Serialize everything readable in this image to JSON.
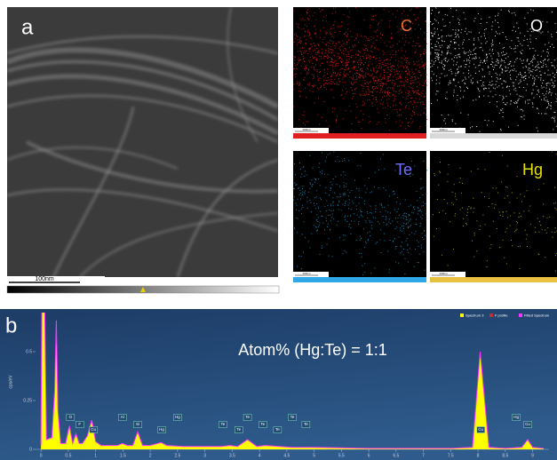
{
  "panel_a": {
    "label": "a",
    "scale_bar": "100nm"
  },
  "maps": [
    {
      "element": "C",
      "color": "#f07030",
      "dot_color": "#c8181a",
      "bar_color": "#e02020"
    },
    {
      "element": "O",
      "color": "#ffffff",
      "dot_color": "#e0e0e0",
      "bar_color": "#d8d8d8"
    },
    {
      "element": "Te",
      "color": "#6f6fff",
      "dot_color": "#1f7fae",
      "bar_color": "#30a8e8"
    },
    {
      "element": "Hg",
      "color": "#e8e000",
      "dot_color": "#9a9a20",
      "bar_color": "#e8c040"
    }
  ],
  "chart_data": {
    "type": "area",
    "panel_label": "b",
    "annotation": "Atom% (Hg:Te) = 1:1",
    "y_label": "cps/eV",
    "x": [
      0,
      0.02,
      0.06,
      0.1,
      0.2,
      0.25,
      0.28,
      0.31,
      0.36,
      0.45,
      0.52,
      0.58,
      0.64,
      0.7,
      0.76,
      0.85,
      0.93,
      1.0,
      1.1,
      1.4,
      1.49,
      1.58,
      1.68,
      1.77,
      1.86,
      2.0,
      2.2,
      2.3,
      2.6,
      3.3,
      3.45,
      3.6,
      3.78,
      3.95,
      4.1,
      4.6,
      5.0,
      6.0,
      7.5,
      7.9,
      8.04,
      8.2,
      8.5,
      8.8,
      8.91,
      9.0,
      9.2
    ],
    "series": [
      {
        "name": "Spectrum 3",
        "color": "#ffff00",
        "outline": "#ff33ff",
        "values": [
          0.02,
          0.9,
          0.9,
          0.05,
          0.06,
          0.3,
          0.66,
          0.2,
          0.03,
          0.03,
          0.12,
          0.03,
          0.08,
          0.03,
          0.03,
          0.07,
          0.15,
          0.04,
          0.02,
          0.02,
          0.03,
          0.02,
          0.02,
          0.09,
          0.02,
          0.02,
          0.035,
          0.02,
          0.015,
          0.015,
          0.02,
          0.015,
          0.05,
          0.015,
          0.02,
          0.01,
          0.01,
          0.005,
          0.005,
          0.01,
          0.5,
          0.01,
          0.005,
          0.01,
          0.05,
          0.01,
          0.005
        ]
      }
    ],
    "legend": [
      {
        "name": "Spectrum 3",
        "color": "#ffff00"
      },
      {
        "name": "F profile",
        "color": "#c03030"
      },
      {
        "name": "Fitted Spectrum",
        "color": "#ff33ff"
      }
    ],
    "peaks": [
      {
        "label": "O",
        "energy": 0.54
      },
      {
        "label": "F",
        "energy": 0.71
      },
      {
        "label": "Cu",
        "energy": 0.96
      },
      {
        "label": "Al",
        "energy": 1.49
      },
      {
        "label": "Si",
        "energy": 1.77
      },
      {
        "label": "Hg",
        "energy": 2.21
      },
      {
        "label": "Hg",
        "energy": 2.5
      },
      {
        "label": "Te",
        "energy": 3.33
      },
      {
        "label": "Te",
        "energy": 3.62
      },
      {
        "label": "Te",
        "energy": 3.78
      },
      {
        "label": "Te",
        "energy": 4.06
      },
      {
        "label": "Te",
        "energy": 4.33
      },
      {
        "label": "Te",
        "energy": 4.6
      },
      {
        "label": "Te",
        "energy": 4.85
      },
      {
        "label": "Cu",
        "energy": 8.05
      },
      {
        "label": "Hg",
        "energy": 8.7
      },
      {
        "label": "Cu",
        "energy": 8.91
      }
    ],
    "xlim": [
      -0.1,
      9.3
    ],
    "xticks": [
      0,
      0.5,
      1,
      1.5,
      2,
      2.5,
      3,
      3.5,
      4,
      4.5,
      5,
      5.5,
      6,
      6.5,
      7,
      7.5,
      8,
      8.5,
      9
    ],
    "ylim": [
      0,
      0.7
    ],
    "yticks": [
      0,
      0.25,
      0.5
    ]
  }
}
